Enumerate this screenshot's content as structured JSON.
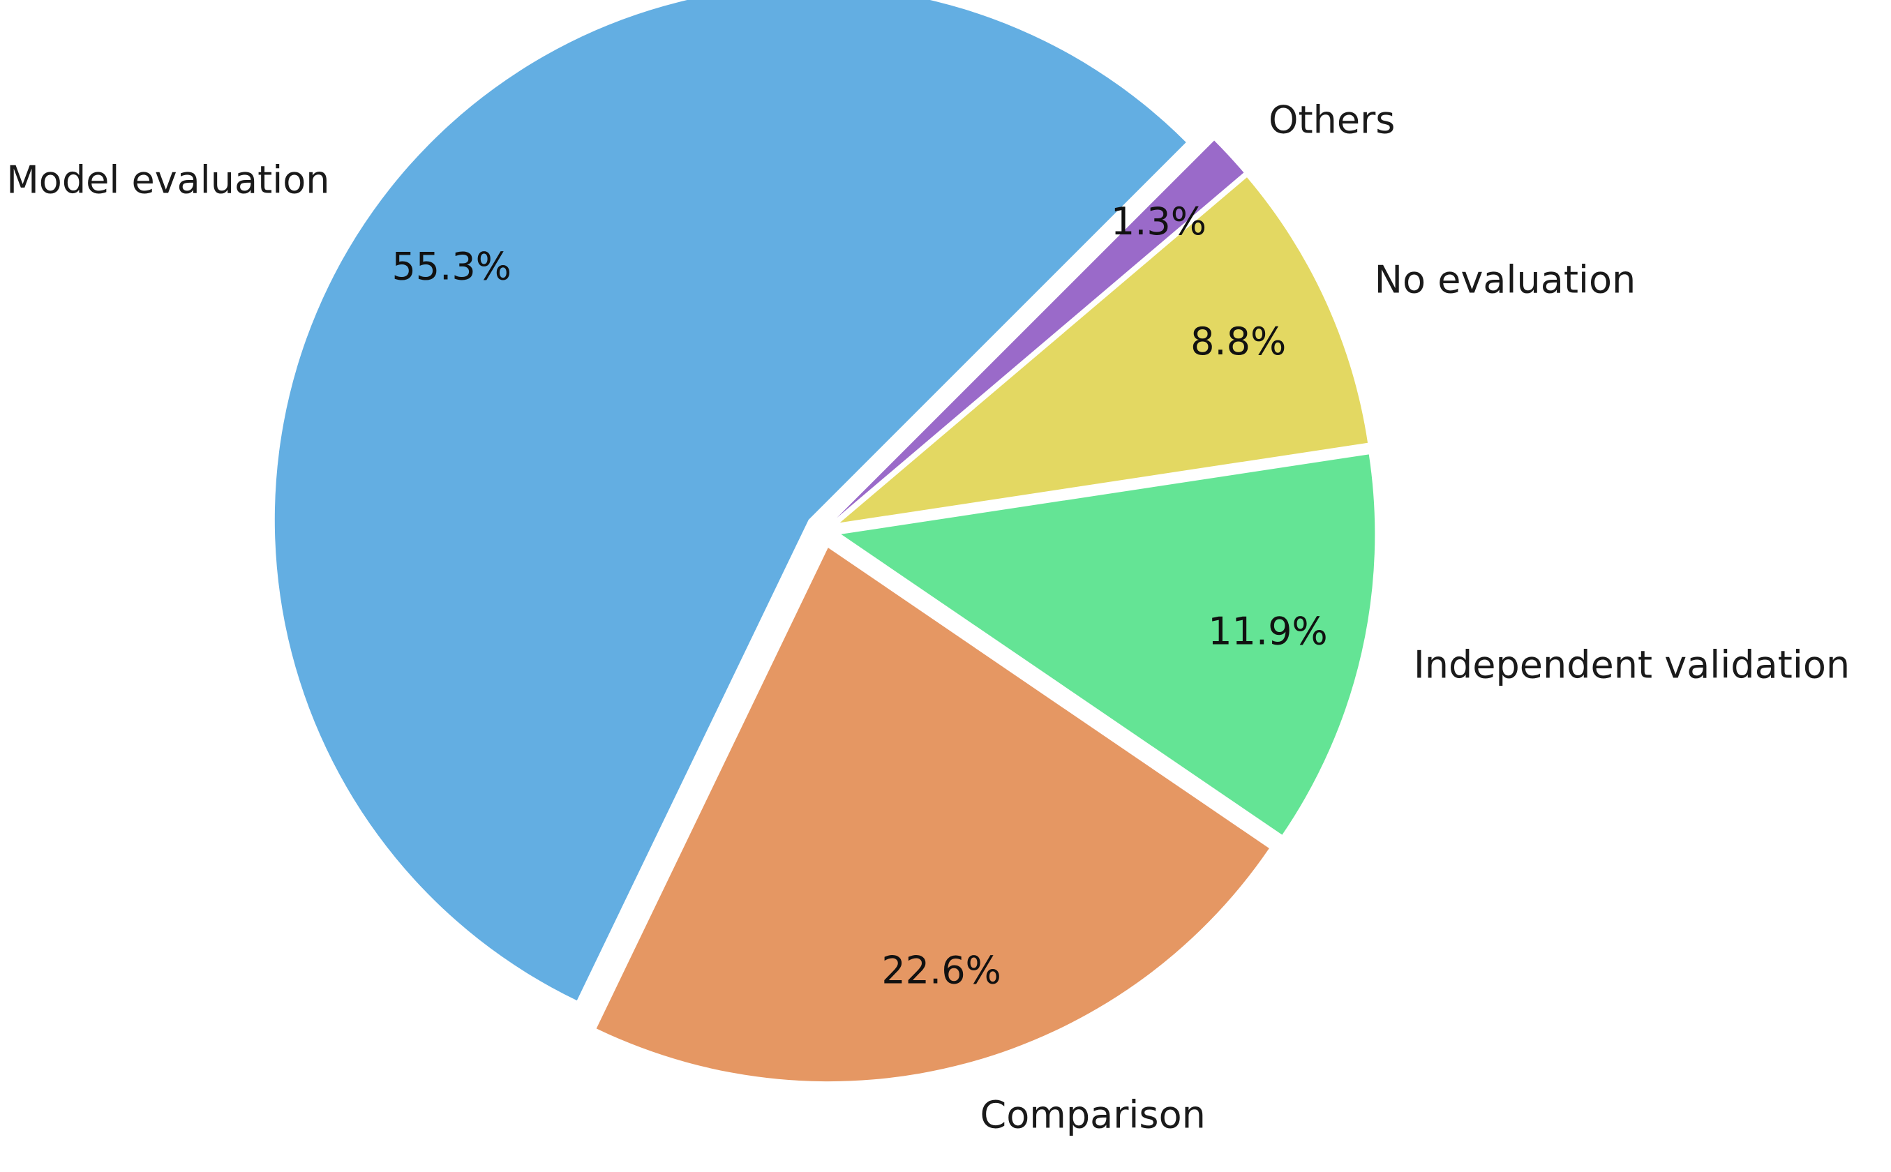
{
  "chart_data": {
    "type": "pie",
    "slices": [
      {
        "label": "Model evaluation",
        "value": 55.3,
        "pct_label": "55.3%",
        "color": "#63aee2"
      },
      {
        "label": "Comparison",
        "value": 22.6,
        "pct_label": "22.6%",
        "color": "#e59763"
      },
      {
        "label": "Independent validation",
        "value": 11.9,
        "pct_label": "11.9%",
        "color": "#64e495"
      },
      {
        "label": "No evaluation",
        "value": 8.8,
        "pct_label": "8.8%",
        "color": "#e3d862"
      },
      {
        "label": "Others",
        "value": 1.3,
        "pct_label": "1.3%",
        "color": "#9a6ac9"
      }
    ],
    "start_angle_deg": 45,
    "direction": "counterclockwise",
    "exploded": true,
    "legend": "none"
  }
}
